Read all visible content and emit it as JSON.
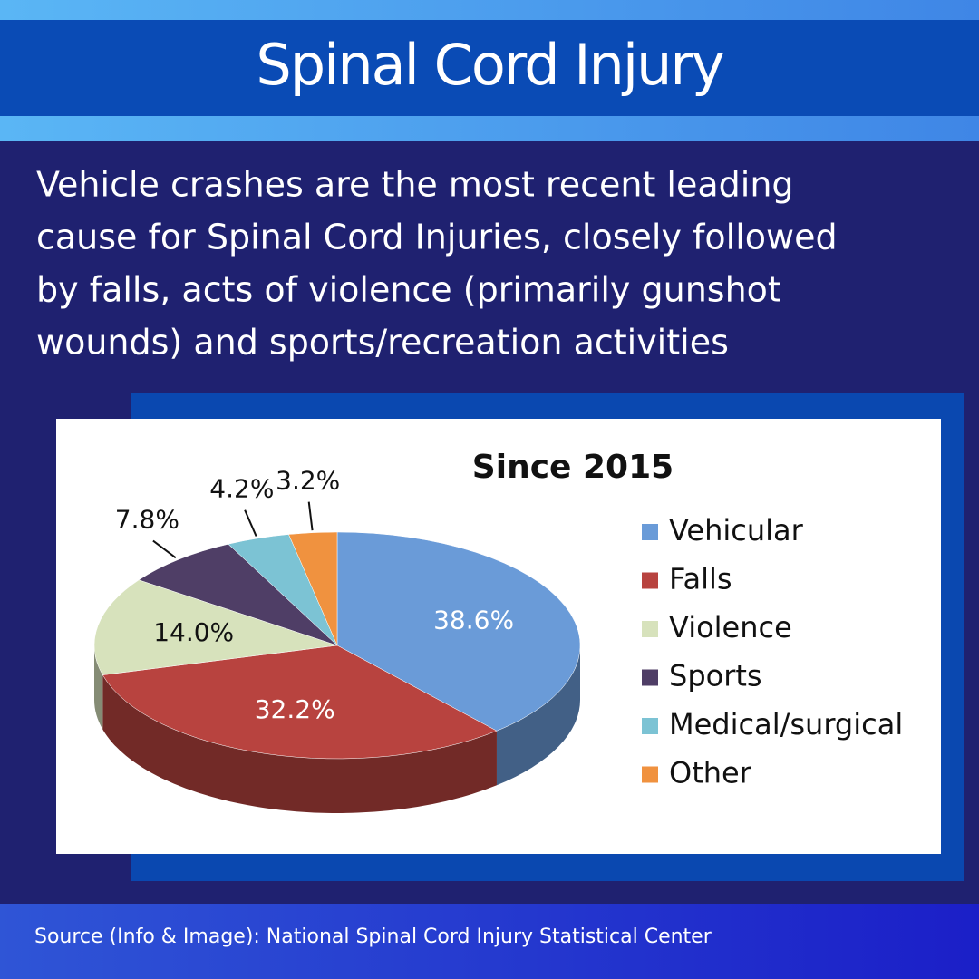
{
  "header": {
    "title": "Spinal Cord Injury"
  },
  "description": [
    "Vehicle crashes are the most recent leading",
    "cause for Spinal Cord Injuries, closely followed",
    "by falls, acts of violence (primarily gunshot",
    "wounds) and sports/recreation activities"
  ],
  "chart_data": {
    "type": "pie",
    "title": "Since 2015",
    "categories": [
      "Vehicular",
      "Falls",
      "Violence",
      "Sports",
      "Medical/surgical",
      "Other"
    ],
    "values": [
      38.6,
      32.2,
      14.0,
      7.8,
      4.2,
      3.2
    ],
    "value_labels": [
      "38.6%",
      "32.2%",
      "14.0%",
      "7.8%",
      "4.2%",
      "3.2%"
    ],
    "colors": [
      "#6a9bd8",
      "#b8433f",
      "#d7e2bc",
      "#4f3e66",
      "#7cc3d4",
      "#f0923f"
    ]
  },
  "source": "Source (Info & Image): National Spinal Cord Injury Statistical Center"
}
